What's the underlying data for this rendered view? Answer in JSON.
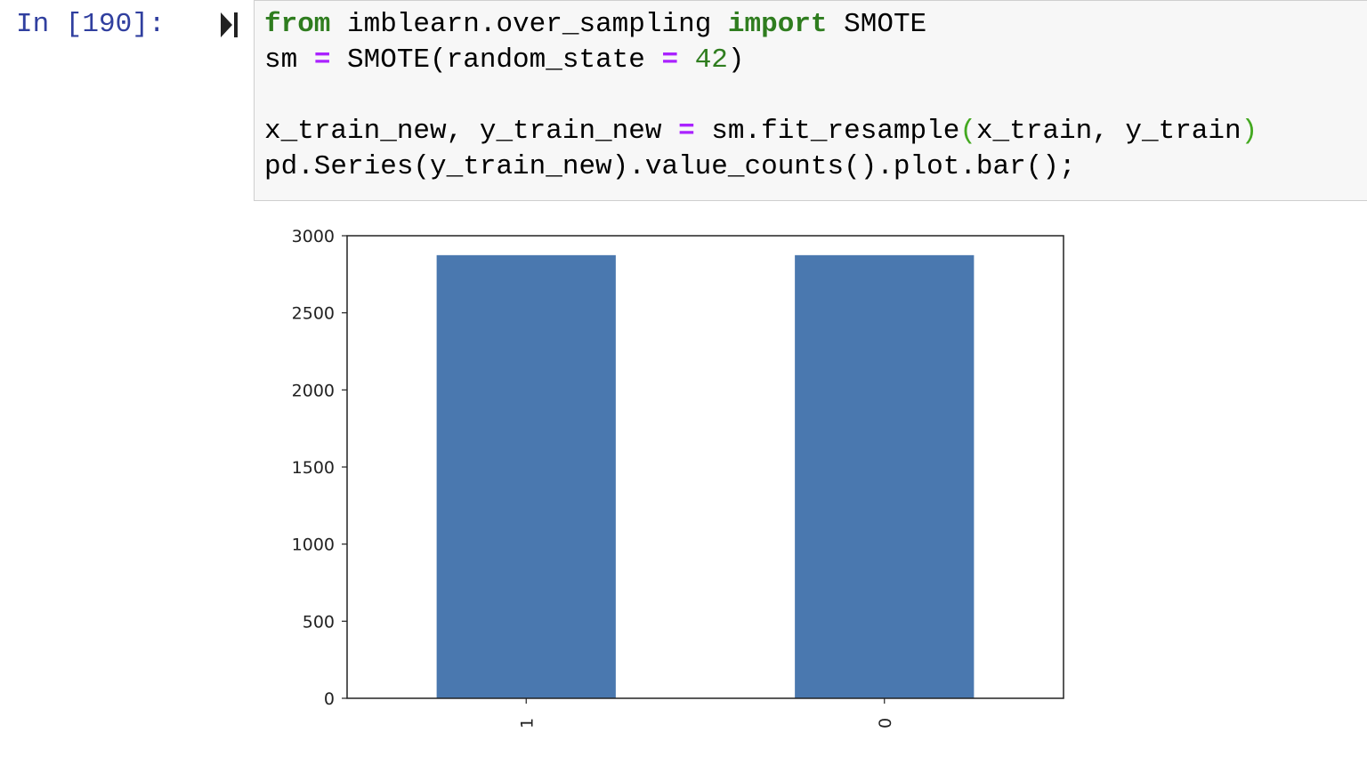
{
  "cell": {
    "prompt": "In [190]:",
    "code_lines": [
      [
        {
          "text": "from",
          "cls": "kw"
        },
        {
          "text": " imblearn.over_sampling ",
          "cls": ""
        },
        {
          "text": "import",
          "cls": "kw"
        },
        {
          "text": " SMOTE",
          "cls": ""
        }
      ],
      [
        {
          "text": "sm ",
          "cls": ""
        },
        {
          "text": "=",
          "cls": "op"
        },
        {
          "text": " SMOTE(random_state ",
          "cls": ""
        },
        {
          "text": "=",
          "cls": "op"
        },
        {
          "text": " ",
          "cls": ""
        },
        {
          "text": "42",
          "cls": "num"
        },
        {
          "text": ")",
          "cls": ""
        }
      ],
      [],
      [
        {
          "text": "x_train_new, y_train_new ",
          "cls": ""
        },
        {
          "text": "=",
          "cls": "op"
        },
        {
          "text": " sm.fit_resample",
          "cls": ""
        },
        {
          "text": "(",
          "cls": "paren-g"
        },
        {
          "text": "x_train, y_train",
          "cls": ""
        },
        {
          "text": ")",
          "cls": "paren-g"
        }
      ],
      [
        {
          "text": "pd.Series(y_train_new).value_counts().plot.bar();",
          "cls": ""
        }
      ]
    ]
  },
  "icons": {
    "run": "run-cell-icon"
  },
  "colors": {
    "bar": "#4a78af",
    "prompt": "#303f9f",
    "keyword": "#2f7d1f",
    "operator": "#aa22ff"
  },
  "chart_data": {
    "type": "bar",
    "categories": [
      "1",
      "0"
    ],
    "values": [
      2874,
      2874
    ],
    "title": "",
    "xlabel": "",
    "ylabel": "",
    "ylim": [
      0,
      3000
    ],
    "yticks": [
      0,
      500,
      1000,
      1500,
      2000,
      2500,
      3000
    ],
    "ytick_labels": [
      "0",
      "500",
      "1000",
      "1500",
      "2000",
      "2500",
      "3000"
    ],
    "xtick_rotation": "vertical",
    "grid": false,
    "legend": "none"
  }
}
